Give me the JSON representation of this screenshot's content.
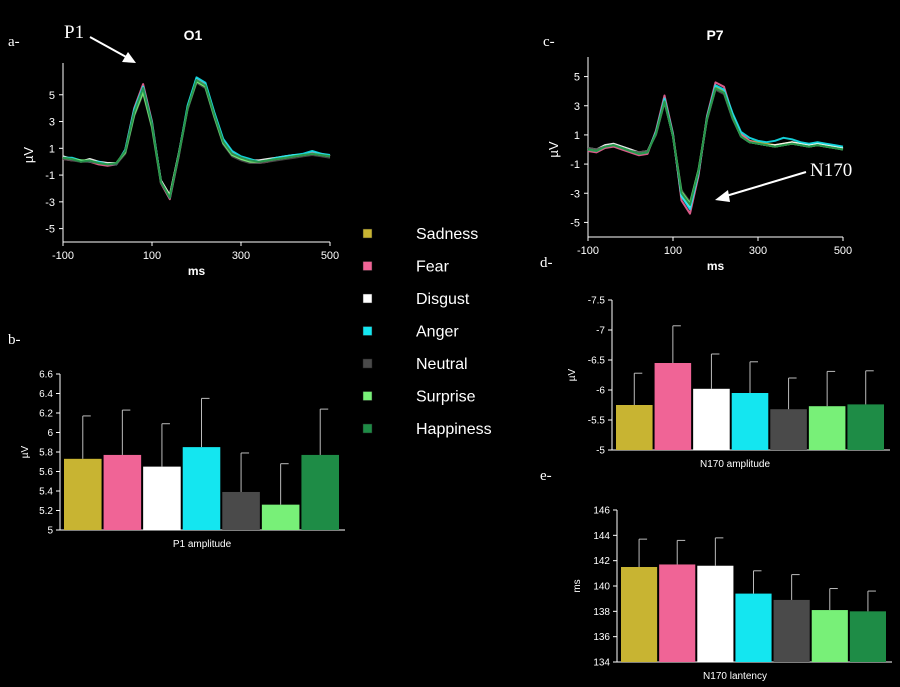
{
  "colors": {
    "Sadness": "#c8b432",
    "Fear": "#f06496",
    "Disgust": "#ffffff",
    "Anger": "#14e6f0",
    "Neutral": "#4a4a4a",
    "Surprise": "#78f078",
    "Happiness": "#1e8c46"
  },
  "legend": [
    "Sadness",
    "Fear",
    "Disgust",
    "Anger",
    "Neutral",
    "Surprise",
    "Happiness"
  ],
  "chart_data": [
    {
      "panel": "a-",
      "type": "line",
      "title": "O1",
      "annotation": "P1",
      "xlabel": "ms",
      "ylabel": "µV",
      "xlim": [
        -100,
        500
      ],
      "ylim": [
        -6,
        7
      ],
      "xticks": [
        -100,
        100,
        300,
        500
      ],
      "yticks": [
        5,
        3,
        1,
        -1,
        -3,
        -5
      ],
      "x": [
        -100,
        -80,
        -60,
        -40,
        -20,
        0,
        20,
        40,
        60,
        80,
        100,
        120,
        140,
        160,
        180,
        200,
        220,
        240,
        260,
        280,
        300,
        320,
        340,
        360,
        380,
        400,
        420,
        440,
        460,
        480,
        500
      ],
      "series": [
        {
          "name": "Sadness",
          "values": [
            0.3,
            0.2,
            0.0,
            0.1,
            -0.1,
            -0.2,
            -0.1,
            0.8,
            3.8,
            5.5,
            2.8,
            -1.5,
            -2.6,
            0.5,
            4.0,
            6.0,
            5.6,
            3.5,
            1.5,
            0.6,
            0.3,
            0.1,
            0.0,
            0.1,
            0.2,
            0.3,
            0.4,
            0.5,
            0.6,
            0.5,
            0.4
          ]
        },
        {
          "name": "Fear",
          "values": [
            0.2,
            0.1,
            0.1,
            0.0,
            -0.2,
            -0.3,
            -0.2,
            0.9,
            4.0,
            5.8,
            3.0,
            -1.6,
            -2.8,
            0.4,
            4.1,
            6.2,
            5.8,
            3.6,
            1.6,
            0.7,
            0.3,
            0.0,
            -0.1,
            0.0,
            0.2,
            0.3,
            0.4,
            0.5,
            0.7,
            0.6,
            0.4
          ]
        },
        {
          "name": "Disgust",
          "values": [
            0.4,
            0.2,
            0.0,
            0.2,
            0.0,
            -0.1,
            -0.1,
            0.7,
            3.6,
            5.4,
            2.7,
            -1.4,
            -2.5,
            0.6,
            4.0,
            6.1,
            5.7,
            3.4,
            1.4,
            0.5,
            0.2,
            0.1,
            0.1,
            0.2,
            0.3,
            0.4,
            0.5,
            0.5,
            0.6,
            0.5,
            0.4
          ]
        },
        {
          "name": "Anger",
          "values": [
            0.3,
            0.3,
            0.1,
            0.0,
            0.0,
            -0.2,
            -0.2,
            0.9,
            3.9,
            5.6,
            2.9,
            -1.5,
            -2.7,
            0.5,
            4.2,
            6.3,
            5.9,
            3.7,
            1.7,
            0.8,
            0.4,
            0.2,
            0.0,
            0.1,
            0.3,
            0.4,
            0.5,
            0.6,
            0.8,
            0.6,
            0.5
          ]
        },
        {
          "name": "Neutral",
          "values": [
            0.2,
            0.1,
            0.0,
            0.0,
            -0.1,
            -0.2,
            -0.2,
            0.6,
            3.4,
            5.1,
            2.5,
            -1.6,
            -2.6,
            0.4,
            3.9,
            5.9,
            5.5,
            3.3,
            1.3,
            0.4,
            0.1,
            -0.1,
            -0.1,
            0.0,
            0.1,
            0.2,
            0.3,
            0.4,
            0.5,
            0.4,
            0.3
          ]
        },
        {
          "name": "Surprise",
          "values": [
            0.3,
            0.2,
            0.1,
            0.1,
            -0.1,
            -0.2,
            -0.1,
            0.7,
            3.5,
            5.2,
            2.6,
            -1.5,
            -2.6,
            0.5,
            4.0,
            6.0,
            5.6,
            3.4,
            1.4,
            0.5,
            0.2,
            0.0,
            0.0,
            0.1,
            0.2,
            0.3,
            0.4,
            0.5,
            0.6,
            0.5,
            0.4
          ]
        },
        {
          "name": "Happiness",
          "values": [
            0.3,
            0.2,
            0.0,
            0.1,
            -0.1,
            -0.2,
            -0.1,
            0.8,
            3.7,
            5.5,
            2.8,
            -1.5,
            -2.7,
            0.5,
            4.0,
            6.1,
            5.7,
            3.5,
            1.5,
            0.6,
            0.3,
            0.1,
            0.0,
            0.1,
            0.2,
            0.3,
            0.4,
            0.5,
            0.6,
            0.5,
            0.4
          ]
        }
      ]
    },
    {
      "panel": "b-",
      "type": "bar",
      "xlabel": "P1 amplitude",
      "ylabel": "µV",
      "ylim": [
        5,
        6.6
      ],
      "yticks": [
        5,
        5.2,
        5.4,
        5.6,
        5.8,
        6,
        6.2,
        6.4,
        6.6
      ],
      "categories": [
        "Sadness",
        "Fear",
        "Disgust",
        "Anger",
        "Neutral",
        "Surprise",
        "Happiness"
      ],
      "values": [
        5.73,
        5.77,
        5.65,
        5.85,
        5.39,
        5.26,
        5.77
      ],
      "errors": [
        0.44,
        0.46,
        0.44,
        0.5,
        0.4,
        0.42,
        0.47
      ]
    },
    {
      "panel": "c-",
      "type": "line",
      "title": "P7",
      "annotation": "N170",
      "xlabel": "ms",
      "ylabel": "µV",
      "xlim": [
        -100,
        500
      ],
      "ylim": [
        -6,
        6
      ],
      "xticks": [
        -100,
        100,
        300,
        500
      ],
      "yticks": [
        5,
        3,
        1,
        -1,
        -3,
        -5
      ],
      "x": [
        -100,
        -80,
        -60,
        -40,
        -20,
        0,
        20,
        40,
        60,
        80,
        100,
        120,
        140,
        160,
        180,
        200,
        220,
        240,
        260,
        280,
        300,
        320,
        340,
        360,
        380,
        400,
        420,
        440,
        460,
        480,
        500
      ],
      "series": [
        {
          "name": "Sadness",
          "values": [
            0.0,
            -0.1,
            0.2,
            0.3,
            0.1,
            -0.1,
            -0.3,
            -0.2,
            1.2,
            3.4,
            1.0,
            -3.0,
            -3.8,
            -1.5,
            2.2,
            4.3,
            4.0,
            2.3,
            1.0,
            0.6,
            0.5,
            0.4,
            0.3,
            0.4,
            0.5,
            0.4,
            0.3,
            0.4,
            0.3,
            0.2,
            0.1
          ]
        },
        {
          "name": "Fear",
          "values": [
            -0.1,
            -0.2,
            0.1,
            0.2,
            0.0,
            -0.2,
            -0.4,
            -0.3,
            1.3,
            3.7,
            1.1,
            -3.5,
            -4.4,
            -1.8,
            2.3,
            4.6,
            4.3,
            2.4,
            1.1,
            0.6,
            0.4,
            0.3,
            0.2,
            0.3,
            0.4,
            0.3,
            0.2,
            0.3,
            0.2,
            0.1,
            0.0
          ]
        },
        {
          "name": "Disgust",
          "values": [
            0.1,
            0.0,
            0.3,
            0.4,
            0.2,
            0.0,
            -0.2,
            -0.1,
            1.1,
            3.3,
            0.9,
            -3.2,
            -4.0,
            -1.6,
            2.1,
            4.2,
            3.9,
            2.2,
            0.9,
            0.5,
            0.4,
            0.3,
            0.3,
            0.4,
            0.5,
            0.4,
            0.3,
            0.4,
            0.3,
            0.2,
            0.1
          ]
        },
        {
          "name": "Anger",
          "values": [
            0.0,
            -0.1,
            0.2,
            0.3,
            0.1,
            -0.1,
            -0.3,
            -0.2,
            1.2,
            3.5,
            1.0,
            -3.2,
            -4.1,
            -1.6,
            2.2,
            4.4,
            4.1,
            2.5,
            1.2,
            0.8,
            0.6,
            0.5,
            0.6,
            0.8,
            0.7,
            0.5,
            0.4,
            0.5,
            0.4,
            0.3,
            0.2
          ]
        },
        {
          "name": "Neutral",
          "values": [
            0.1,
            0.0,
            0.2,
            0.3,
            0.1,
            -0.1,
            -0.2,
            -0.1,
            1.0,
            3.2,
            0.9,
            -2.8,
            -3.6,
            -1.4,
            2.0,
            4.1,
            3.8,
            2.1,
            0.9,
            0.5,
            0.4,
            0.3,
            0.2,
            0.3,
            0.4,
            0.3,
            0.2,
            0.3,
            0.2,
            0.1,
            0.0
          ]
        },
        {
          "name": "Surprise",
          "values": [
            0.0,
            -0.1,
            0.2,
            0.3,
            0.1,
            -0.1,
            -0.3,
            -0.2,
            1.1,
            3.3,
            0.9,
            -2.9,
            -3.7,
            -1.4,
            2.1,
            4.2,
            3.9,
            2.2,
            0.9,
            0.5,
            0.4,
            0.3,
            0.2,
            0.3,
            0.4,
            0.3,
            0.2,
            0.3,
            0.2,
            0.1,
            0.0
          ]
        },
        {
          "name": "Happiness",
          "values": [
            0.0,
            -0.1,
            0.2,
            0.3,
            0.1,
            -0.1,
            -0.3,
            -0.2,
            1.1,
            3.3,
            0.9,
            -3.0,
            -3.8,
            -1.5,
            2.1,
            4.2,
            3.9,
            2.2,
            0.9,
            0.5,
            0.4,
            0.3,
            0.2,
            0.3,
            0.4,
            0.3,
            0.2,
            0.3,
            0.2,
            0.1,
            0.0
          ]
        }
      ]
    },
    {
      "panel": "d-",
      "type": "bar",
      "xlabel": "N170 amplitude",
      "ylabel": "µV",
      "ylim": [
        -5,
        -7.5
      ],
      "yticks": [
        -5,
        -5.5,
        -6,
        -6.5,
        -7,
        -7.5
      ],
      "categories": [
        "Sadness",
        "Fear",
        "Disgust",
        "Anger",
        "Neutral",
        "Surprise",
        "Happiness"
      ],
      "values": [
        -5.75,
        -6.45,
        -6.02,
        -5.95,
        -5.68,
        -5.73,
        -5.76
      ],
      "errors": [
        0.53,
        0.62,
        0.58,
        0.52,
        0.52,
        0.58,
        0.56
      ]
    },
    {
      "panel": "e-",
      "type": "bar",
      "xlabel": "N170 lantency",
      "ylabel": "ms",
      "ylim": [
        134,
        146
      ],
      "yticks": [
        134,
        136,
        138,
        140,
        142,
        144,
        146
      ],
      "categories": [
        "Sadness",
        "Fear",
        "Disgust",
        "Anger",
        "Neutral",
        "Surprise",
        "Happiness"
      ],
      "values": [
        141.5,
        141.7,
        141.6,
        139.4,
        138.9,
        138.1,
        138.0
      ],
      "errors": [
        2.2,
        1.9,
        2.2,
        1.8,
        2.0,
        1.7,
        1.6
      ]
    }
  ]
}
